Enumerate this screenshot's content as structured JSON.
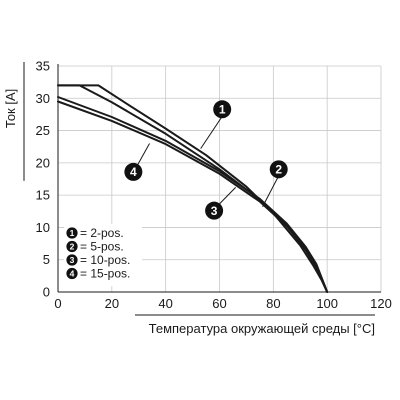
{
  "chart_data": {
    "type": "line",
    "title": "",
    "xlabel": "Температура окружающей среды [°C]",
    "ylabel": "Ток [A]",
    "xlim": [
      0,
      120
    ],
    "ylim": [
      0,
      35
    ],
    "x_ticks": [
      0,
      20,
      40,
      60,
      80,
      100,
      120
    ],
    "y_ticks": [
      0,
      5,
      10,
      15,
      20,
      25,
      30,
      35
    ],
    "grid": true,
    "legend_position": "bottom-left",
    "line_color": "#1a1a1a",
    "grid_color": "#c8c8c8",
    "badge_color": "#111111",
    "series": [
      {
        "name": "2-pos.",
        "marker": "1",
        "legend_text": "= 2-pos.",
        "x": [
          0,
          15,
          25,
          40,
          55,
          70,
          80,
          90,
          95,
          98,
          100
        ],
        "y": [
          32,
          32,
          29.3,
          25.3,
          21.2,
          16.3,
          12.2,
          7.2,
          4.0,
          1.8,
          0
        ]
      },
      {
        "name": "5-pos.",
        "marker": "2",
        "legend_text": "= 5-pos.",
        "x": [
          0,
          8,
          20,
          40,
          60,
          75,
          85,
          92,
          96,
          100
        ],
        "y": [
          32,
          32,
          29.4,
          24.5,
          19.0,
          14.3,
          10.3,
          6.5,
          3.8,
          0
        ]
      },
      {
        "name": "10-pos.",
        "marker": "3",
        "legend_text": "= 10-pos.",
        "x": [
          0,
          20,
          40,
          60,
          75,
          85,
          92,
          96,
          100
        ],
        "y": [
          30.2,
          27.1,
          23.4,
          18.7,
          14.4,
          10.6,
          7.0,
          4.3,
          0
        ]
      },
      {
        "name": "15-pos.",
        "marker": "4",
        "legend_text": "= 15-pos.",
        "x": [
          0,
          20,
          40,
          60,
          75,
          85,
          92,
          96,
          100
        ],
        "y": [
          29.5,
          26.5,
          22.9,
          18.3,
          14.0,
          10.2,
          6.7,
          4.0,
          0
        ]
      }
    ],
    "callouts": [
      {
        "marker": "1",
        "leader_from": [
          53,
          22.2
        ],
        "leader_to": [
          61,
          27.2
        ],
        "badge_at": [
          61,
          28.3
        ]
      },
      {
        "marker": "2",
        "leader_from": [
          76,
          13.2
        ],
        "leader_to": [
          82,
          18.0
        ],
        "badge_at": [
          82,
          19.0
        ]
      },
      {
        "marker": "3",
        "leader_from": [
          66,
          16.2
        ],
        "leader_to": [
          58,
          12.8
        ],
        "badge_at": [
          58,
          12.6
        ]
      },
      {
        "marker": "4",
        "leader_from": [
          34,
          23.0
        ],
        "leader_to": [
          28,
          18.5
        ],
        "badge_at": [
          28,
          18.6
        ]
      }
    ]
  }
}
